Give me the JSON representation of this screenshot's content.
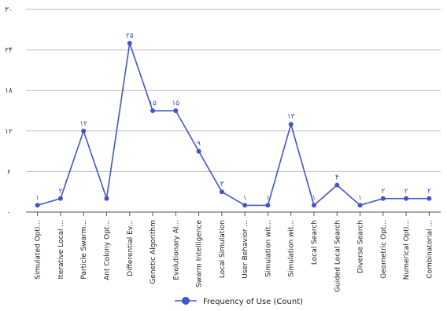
{
  "chart_data": {
    "type": "line",
    "title": "",
    "xlabel": "",
    "ylabel": "",
    "ylim": [
      0,
      30
    ],
    "y_ticks": [
      0,
      6,
      12,
      18,
      24,
      30
    ],
    "y_tick_labels": [
      "۰",
      "۶",
      "۱۲",
      "۱۸",
      "۲۴",
      "۳۰"
    ],
    "grid": "horizontal",
    "legend_position": "bottom",
    "categories": [
      "Simulated Opti...",
      "Iterative Local ...",
      "Particle Swarm...",
      "Ant Colony Opt...",
      "Differential Ev...",
      "Genetic Algorithm",
      "Evolutionary Al...",
      "Swarm Intelligence",
      "Local Simulation",
      "User Behavior ...",
      "Simulation wit...",
      "Simulation wit...",
      "Local Search",
      "Guided Local Search",
      "Diverse Search",
      "Geometric Opt...",
      "Numerical Opti...",
      "Combinatorial ..."
    ],
    "series": [
      {
        "name": "Frequency of Use (Count)",
        "color": "#4455c7",
        "values": [
          1,
          2,
          12,
          2,
          25,
          15,
          15,
          9,
          3,
          1,
          1,
          13,
          1,
          4,
          1,
          2,
          2,
          2
        ],
        "value_labels": [
          "۱",
          "۲",
          "۱۲",
          "",
          "۲۵",
          "۱۵",
          "۱۵",
          "۹",
          "۳",
          "۱",
          "۱",
          "۱۳",
          "۱",
          "۴",
          "۱",
          "۲",
          "۲",
          "۲"
        ]
      }
    ]
  }
}
